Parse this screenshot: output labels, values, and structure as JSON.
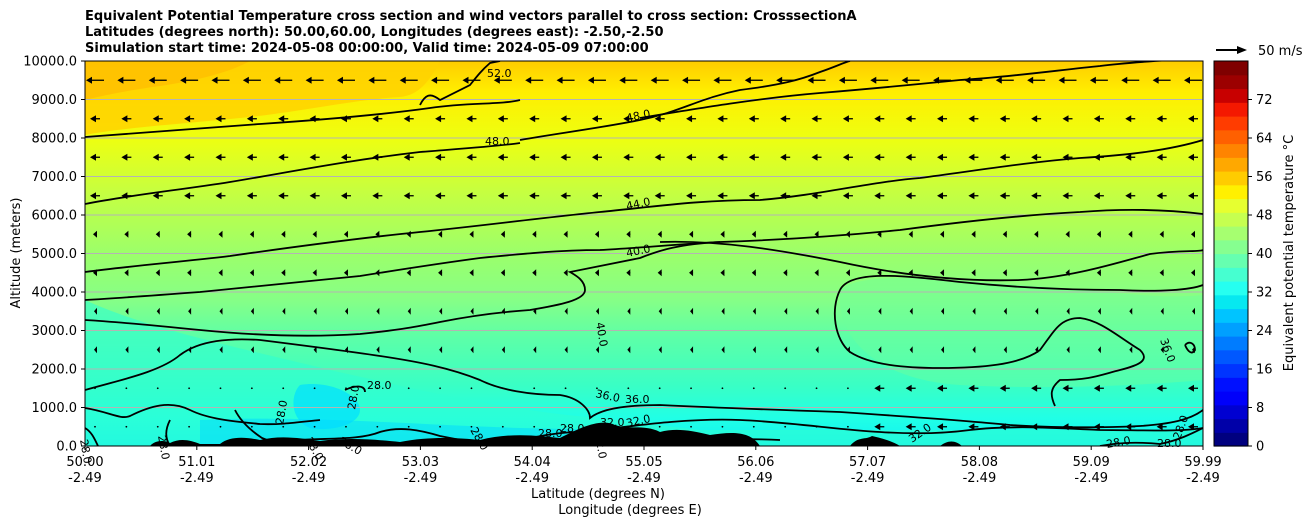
{
  "chart_data": {
    "type": "heatmap",
    "title_lines": [
      "Equivalent Potential Temperature cross section and wind vectors parallel to cross section: CrosssectionA",
      "Latitudes (degrees north): 50.00,60.00, Longitudes (degrees east): -2.50,-2.50",
      "Simulation start time: 2024-05-08 00:00:00, Valid time: 2024-05-09 07:00:00"
    ],
    "ylabel": "Altitude (meters)",
    "xlabel_lat": "Latitude (degrees N)",
    "xlabel_lon": "Longitude (degrees E)",
    "ylim": [
      0,
      10000
    ],
    "y_ticks": [
      "0.0",
      "1000.0",
      "2000.0",
      "3000.0",
      "4000.0",
      "5000.0",
      "6000.0",
      "7000.0",
      "8000.0",
      "9000.0",
      "10000.0"
    ],
    "x_ticks_lat": [
      "50.00",
      "51.01",
      "52.02",
      "53.03",
      "54.04",
      "55.05",
      "56.06",
      "57.07",
      "58.08",
      "59.09",
      "59.99"
    ],
    "x_ticks_lon": [
      "-2.49",
      "-2.49",
      "-2.49",
      "-2.49",
      "-2.49",
      "-2.49",
      "-2.49",
      "-2.49",
      "-2.49",
      "-2.49",
      "-2.49"
    ],
    "colorbar": {
      "label": "Equivalent potential temperature $^\\circ$C",
      "label_text": "Equivalent potential temperature °C",
      "range": [
        0,
        80
      ],
      "ticks": [
        "0",
        "8",
        "16",
        "24",
        "32",
        "40",
        "48",
        "56",
        "64",
        "72"
      ],
      "colors": [
        "#00007f",
        "#0000a8",
        "#0000d1",
        "#0000fa",
        "#0010ff",
        "#0034ff",
        "#0058ff",
        "#007cff",
        "#00a0ff",
        "#00c4ff",
        "#06e8f0",
        "#26fff0",
        "#46ffd0",
        "#66ffb0",
        "#86ff90",
        "#a6ff70",
        "#c6ff50",
        "#e6ff30",
        "#fff000",
        "#ffcc00",
        "#ffa800",
        "#ff8400",
        "#ff6000",
        "#ff3c00",
        "#f41800",
        "#c80000",
        "#9c0000",
        "#7f0000"
      ]
    },
    "contour_labels": [
      "52.0",
      "48.0",
      "48.0",
      "44.0",
      "40.0",
      "40.0",
      "36.0",
      "36.0",
      "36.0",
      "32.0",
      "32.0",
      "28.0",
      "28.0",
      "28.0",
      "28.0",
      "28.0",
      "28.0",
      "28.0",
      "28.0",
      "28.0",
      "28.0",
      "32.0",
      "32.0",
      "28.0",
      "28.0",
      "28.0"
    ],
    "wind_key": "50 m/s",
    "background_levels_degC": [
      {
        "alt": 0,
        "value": 30
      },
      {
        "alt": 1000,
        "value": 33
      },
      {
        "alt": 3000,
        "value": 39
      },
      {
        "alt": 5000,
        "value": 42
      },
      {
        "alt": 7000,
        "value": 46
      },
      {
        "alt": 9000,
        "value": 50
      },
      {
        "alt": 10000,
        "value": 53
      }
    ]
  }
}
